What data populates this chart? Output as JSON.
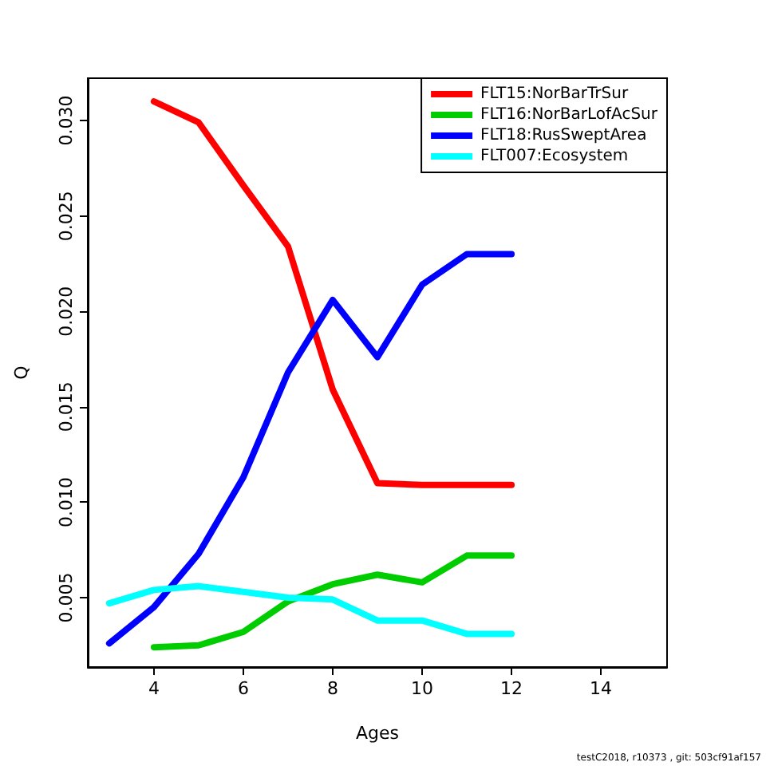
{
  "chart_data": {
    "type": "line",
    "xlabel": "Ages",
    "ylabel": "Q",
    "xlim": [
      2.52,
      15.48
    ],
    "xticks": [
      4,
      6,
      8,
      10,
      12,
      14
    ],
    "ylim": [
      0.00136,
      0.03222
    ],
    "yticks": [
      {
        "value": 0.005,
        "label": "0.005"
      },
      {
        "value": 0.01,
        "label": "0.010"
      },
      {
        "value": 0.015,
        "label": "0.015"
      },
      {
        "value": 0.02,
        "label": "0.020"
      },
      {
        "value": 0.025,
        "label": "0.025"
      },
      {
        "value": 0.03,
        "label": "0.030"
      }
    ],
    "grid": false,
    "legend": "top right",
    "marker": "none",
    "line_style": "solid",
    "series": [
      {
        "name": "FLT15:NorBarTrSur",
        "color": "#ff0000",
        "x": [
          4,
          5,
          6,
          7,
          8,
          9,
          10,
          11,
          12
        ],
        "values": [
          0.031,
          0.0299,
          0.0266,
          0.0234,
          0.0159,
          0.011,
          0.0109,
          0.0109,
          0.0109
        ]
      },
      {
        "name": "FLT16:NorBarLofAcSur",
        "color": "#00cd00",
        "x": [
          4,
          5,
          6,
          7,
          8,
          9,
          10,
          11,
          12
        ],
        "values": [
          0.0024,
          0.0025,
          0.0032,
          0.0048,
          0.0057,
          0.0062,
          0.0058,
          0.0072,
          0.0072
        ]
      },
      {
        "name": "FLT18:RusSweptArea",
        "color": "#0000ff",
        "x": [
          3,
          4,
          5,
          6,
          7,
          8,
          9,
          10,
          11,
          12
        ],
        "values": [
          0.0026,
          0.0045,
          0.0073,
          0.0113,
          0.0168,
          0.0206,
          0.0176,
          0.0214,
          0.023,
          0.023
        ]
      },
      {
        "name": "FLT007:Ecosystem",
        "color": "#00ffff",
        "x": [
          3,
          4,
          5,
          6,
          7,
          8,
          9,
          10,
          11,
          12
        ],
        "values": [
          0.0047,
          0.0054,
          0.0056,
          0.0053,
          0.005,
          0.0049,
          0.0038,
          0.0038,
          0.0031,
          0.0031
        ]
      }
    ],
    "annotations": [
      "testC2018, r10373 , git: 503cf91af157"
    ]
  }
}
